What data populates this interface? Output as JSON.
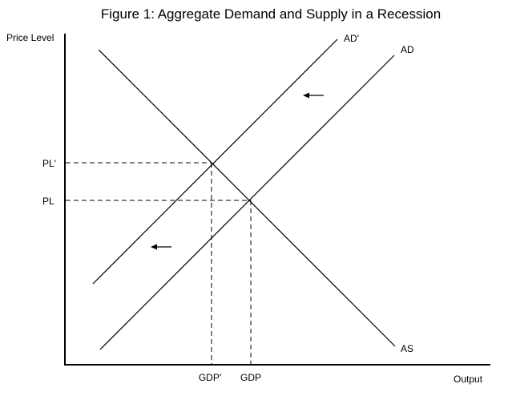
{
  "figure": {
    "title": "Figure 1: Aggregate Demand and Supply in a Recession",
    "y_axis_label": "Price Level",
    "x_axis_label": "Output"
  },
  "curves": {
    "ad_prime_label": "AD'",
    "ad_label": "AD",
    "as_label": "AS"
  },
  "price_levels": {
    "pl_prime": "PL'",
    "pl": "PL"
  },
  "outputs": {
    "gdp_prime": "GDP'",
    "gdp": "GDP"
  },
  "shift_arrows": {
    "direction": "left",
    "count": 2
  }
}
